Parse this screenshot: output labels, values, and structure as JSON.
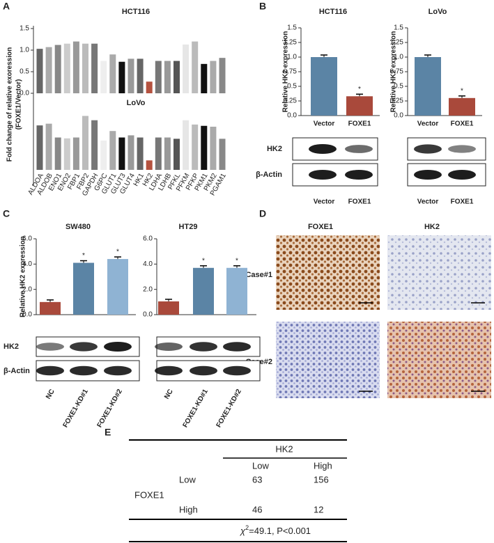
{
  "panel_labels": [
    "A",
    "B",
    "C",
    "D",
    "E"
  ],
  "chart_data": [
    {
      "type": "bar",
      "ylabel": [
        "Fold change of relative exoression",
        "(FOXE1/Vector)"
      ],
      "categories": [
        "ALDOA",
        "ALDOB",
        "ENO1",
        "ENO2",
        "FBP1",
        "FBP2",
        "GAPDH",
        "G6PC",
        "GLUT1",
        "GLUT3",
        "GLUT4",
        "HK1",
        "HK2",
        "LDHA",
        "LDHB",
        "PFKL",
        "PFKM",
        "PFKP",
        "PKM1",
        "PKM2",
        "PGAM1"
      ],
      "colors": [
        "#666666",
        "#aaaaaa",
        "#888888",
        "#cccccc",
        "#999999",
        "#bbbbbb",
        "#777777",
        "#eeeeee",
        "#aaaaaa",
        "#111111",
        "#999999",
        "#666666",
        "#b5523f",
        "#777777",
        "#999999",
        "#555555",
        "#e6e6e6",
        "#bbbbbb",
        "#111111",
        "#aaaaaa",
        "#888888"
      ],
      "panels": [
        {
          "title": "HCT116",
          "values": [
            1.03,
            1.07,
            1.12,
            1.15,
            1.2,
            1.15,
            1.15,
            0.75,
            0.9,
            0.73,
            0.8,
            0.8,
            0.27,
            0.75,
            0.75,
            0.75,
            1.13,
            1.2,
            0.68,
            0.75,
            0.82
          ],
          "ylim": [
            0,
            1.5
          ],
          "yticks": [
            {
              "value": 0,
              "label": "0.0"
            },
            0.5,
            {
              "value": 1,
              "label": "1.0"
            },
            1.5
          ]
        },
        {
          "title": "LoVo",
          "values": [
            1.03,
            1.07,
            0.75,
            0.73,
            0.75,
            1.25,
            1.15,
            0.68,
            0.9,
            0.75,
            0.8,
            0.75,
            0.22,
            0.75,
            0.75,
            0.72,
            1.15,
            1.05,
            1.02,
            1.0,
            0.72
          ],
          "ylim": [
            0,
            1.5
          ]
        }
      ]
    },
    {
      "type": "bar",
      "title": "HCT116",
      "ylabel": "Relative HK2 expression",
      "categories": [
        "Vector",
        "FOXE1"
      ],
      "values": [
        1.0,
        0.33
      ],
      "colors": [
        "#5b84a5",
        "#a9493b"
      ],
      "ylim": [
        0,
        1.5
      ],
      "yticks": [
        {
          "value": 0,
          "label": "0.0"
        },
        0.25,
        0.5,
        0.75,
        {
          "value": 1,
          "label": "1.0"
        },
        1.25,
        1.5
      ],
      "annotations": [
        {
          "at": 1,
          "text": "*"
        }
      ]
    },
    {
      "type": "bar",
      "title": "LoVo",
      "ylabel": "Relative HK2 expression",
      "categories": [
        "Vector",
        "FOXE1"
      ],
      "values": [
        1.0,
        0.3
      ],
      "colors": [
        "#5b84a5",
        "#a9493b"
      ],
      "ylim": [
        0,
        1.5
      ],
      "yticks": [
        {
          "value": 0,
          "label": "0.0"
        },
        0.25,
        0.5,
        0.75,
        {
          "value": 1,
          "label": "1.0"
        },
        1.25,
        1.5
      ],
      "annotations": [
        {
          "at": 1,
          "text": "*"
        }
      ]
    },
    {
      "type": "bar",
      "title": "SW480",
      "ylabel": "Relative HK2 expression",
      "categories": [
        "NC",
        "FOXE1-KD#1",
        "FOXE1-KD#2"
      ],
      "values": [
        1.0,
        4.1,
        4.4
      ],
      "colors": [
        "#a9493b",
        "#5b84a5",
        "#8fb3d3"
      ],
      "ylim": [
        0,
        6
      ],
      "yticks": [
        {
          "value": 0,
          "label": "0.0"
        },
        {
          "value": 2,
          "label": "2.0"
        },
        {
          "value": 4,
          "label": "4.0"
        },
        {
          "value": 6,
          "label": "6.0"
        }
      ],
      "annotations": [
        {
          "at": 1,
          "text": "*"
        },
        {
          "at": 2,
          "text": "*"
        }
      ]
    },
    {
      "type": "bar",
      "title": "HT29",
      "categories": [
        "NC",
        "FOXE1-KD#1",
        "FOXE1-KD#2"
      ],
      "values": [
        1.05,
        3.7,
        3.7
      ],
      "colors": [
        "#a9493b",
        "#5b84a5",
        "#8fb3d3"
      ],
      "ylim": [
        0,
        6
      ],
      "yticks": [
        {
          "value": 0,
          "label": "0.0"
        },
        {
          "value": 2,
          "label": "2.0"
        },
        {
          "value": 4,
          "label": "4.0"
        },
        {
          "value": 6,
          "label": "6.0"
        }
      ],
      "annotations": [
        {
          "at": 1,
          "text": "*"
        },
        {
          "at": 2,
          "text": "*"
        }
      ]
    }
  ],
  "blots": [
    {
      "rows": [
        "HK2",
        "β-Actin"
      ]
    },
    {
      "rows": [
        "HK2",
        "β-Actin"
      ]
    }
  ],
  "ihc": {
    "columns": [
      "FOXE1",
      "HK2"
    ],
    "rows": [
      "Case#1",
      "Case#2"
    ]
  },
  "table": {
    "header": "HK2",
    "columns": [
      "Low",
      "High"
    ],
    "row_group": "FOXE1",
    "rows": [
      [
        "Low",
        "63",
        "156"
      ],
      [
        "High",
        "46",
        "12"
      ]
    ],
    "footer": [
      "χ",
      "2",
      "=49.1, P<0.001"
    ]
  }
}
